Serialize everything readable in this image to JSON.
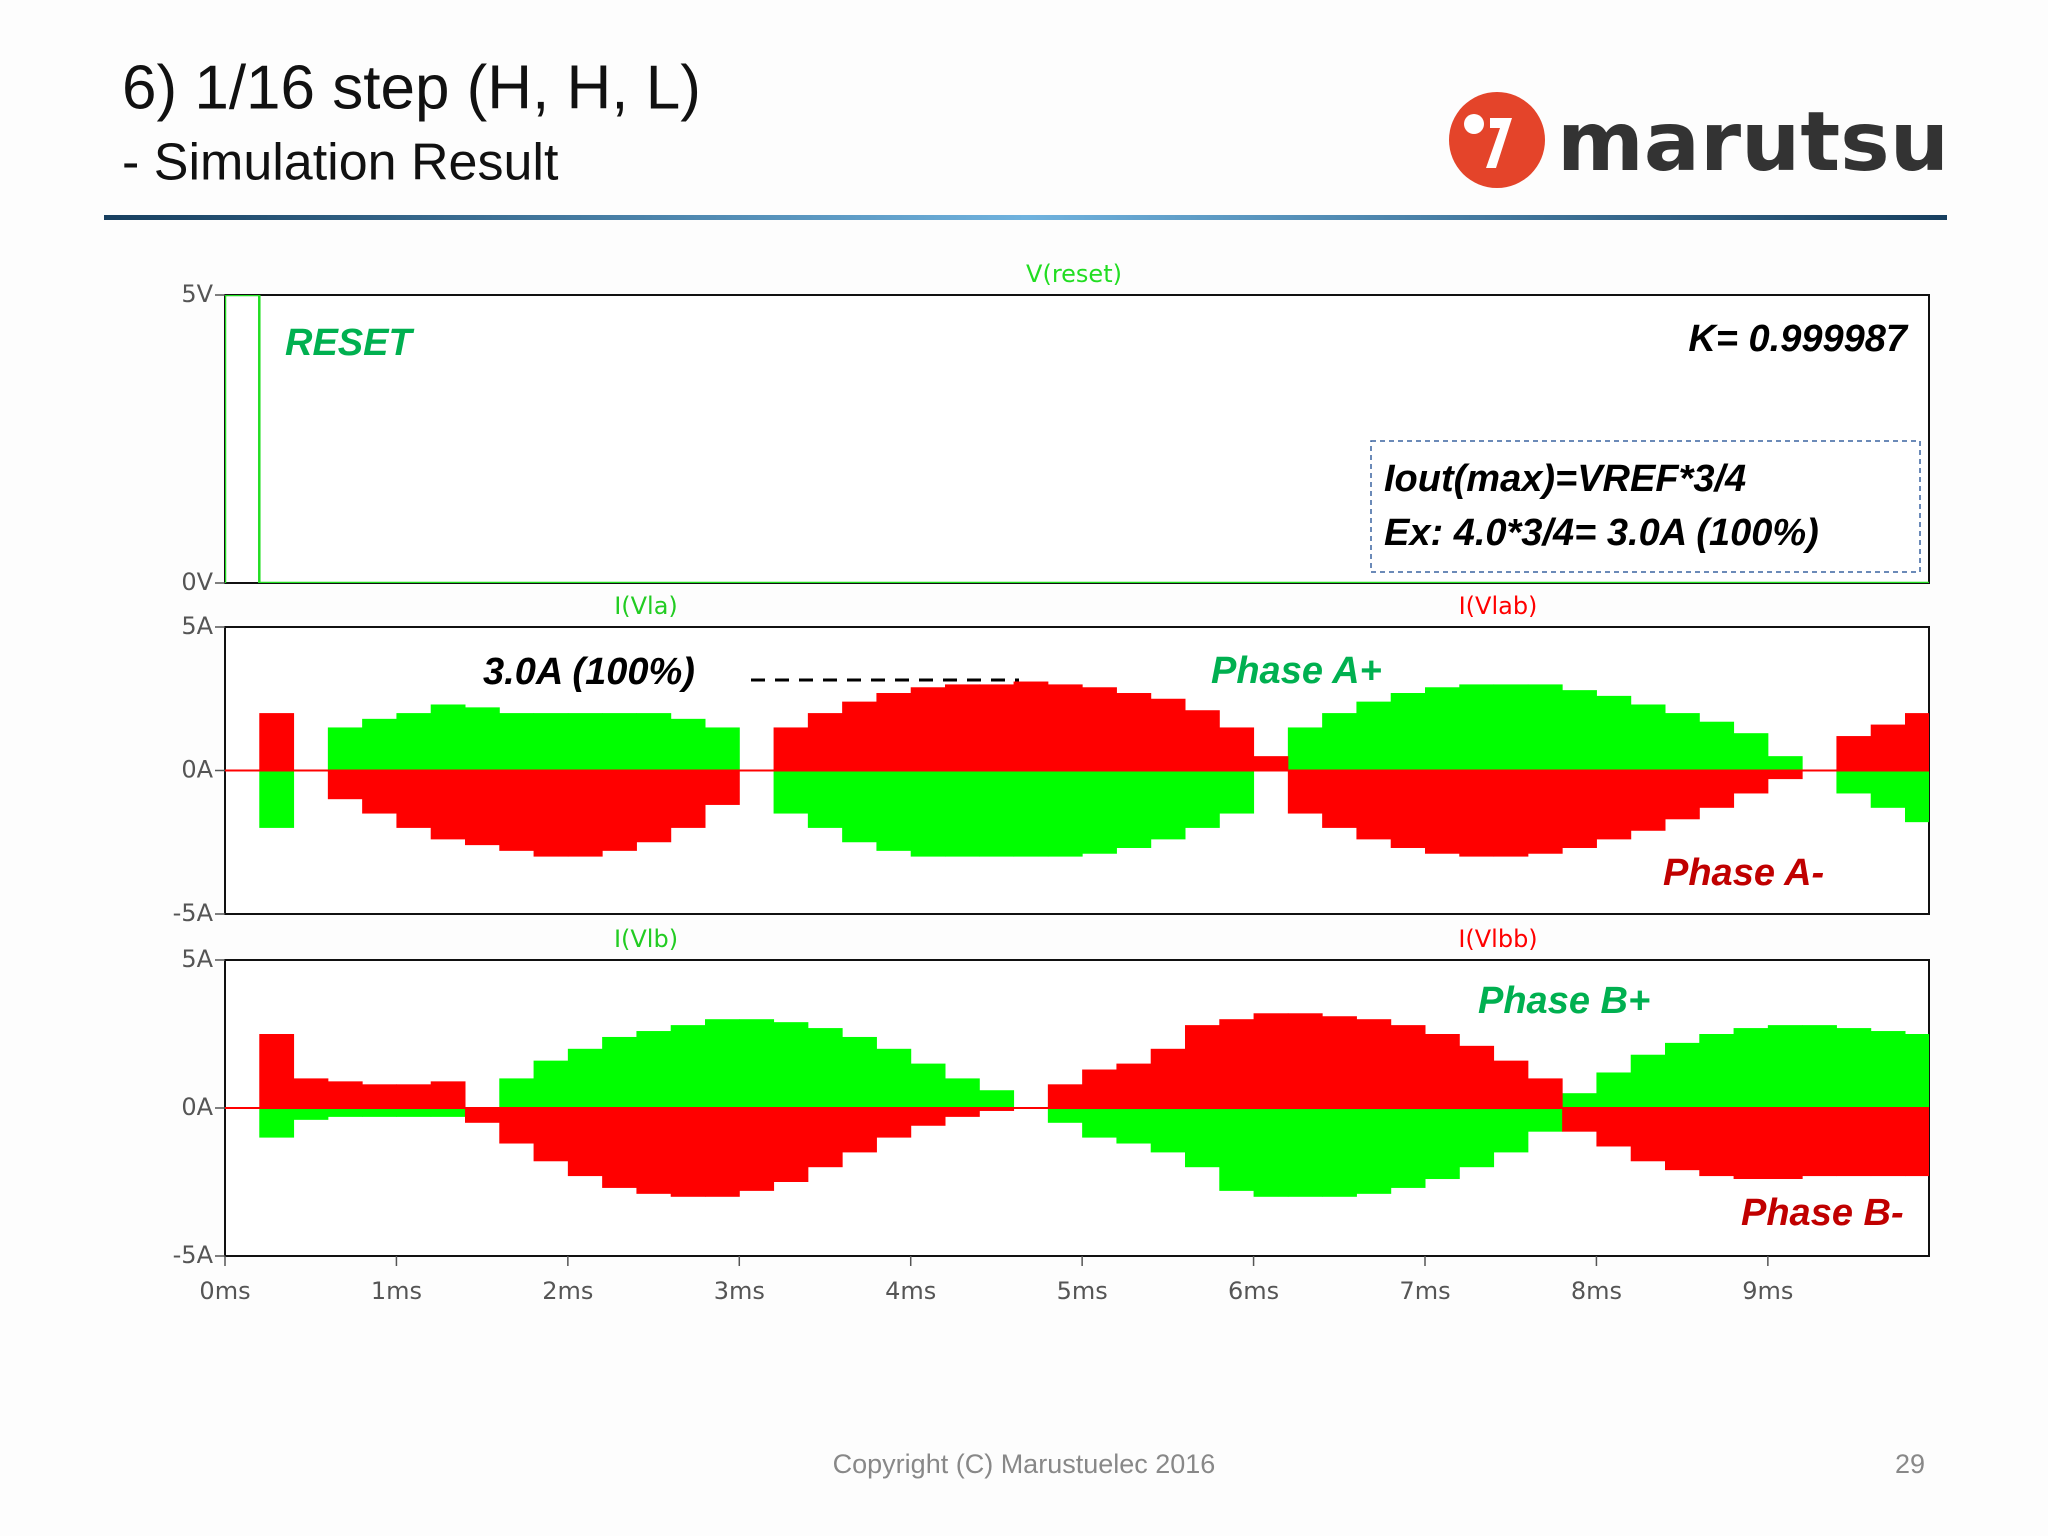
{
  "title": "6) 1/16 step (H, H, L)",
  "subtitle": "- Simulation Result",
  "logo": "marutsu",
  "footer": "Copyright (C) Marustuelec 2016",
  "page_number": "29",
  "chart_data": [
    {
      "type": "line",
      "x": [
        0,
        0,
        0.2,
        0.2,
        9.94
      ],
      "series": [
        {
          "name": "V(reset)",
          "color": "#22dd22",
          "values": [
            0,
            5,
            5,
            0,
            0
          ]
        }
      ],
      "xlim": [
        0,
        9.94
      ],
      "ylim": [
        0,
        5
      ],
      "yticks": [
        {
          "value": 0,
          "label": "0V"
        },
        {
          "value": 5,
          "label": "5V"
        }
      ],
      "annotations": [
        "RESET",
        "K= 0.999987",
        "Iout(max)=VREF*3/4",
        "Ex: 4.0*3/4= 3.0A (100%)"
      ]
    },
    {
      "type": "area",
      "x": [
        0,
        0.2,
        0.4,
        0.6,
        0.8,
        1.0,
        1.2,
        1.4,
        1.6,
        1.8,
        2.0,
        2.2,
        2.4,
        2.6,
        2.8,
        3.0,
        3.2,
        3.4,
        3.6,
        3.8,
        4.0,
        4.2,
        4.4,
        4.6,
        4.8,
        5.0,
        5.2,
        5.4,
        5.6,
        5.8,
        6.0,
        6.2,
        6.4,
        6.6,
        6.8,
        7.0,
        7.2,
        7.4,
        7.6,
        7.8,
        8.0,
        8.2,
        8.4,
        8.6,
        8.8,
        9.0,
        9.2,
        9.4,
        9.6,
        9.8
      ],
      "series": [
        {
          "name": "I(Vla)",
          "color": "#00ff00",
          "values": [
            0,
            -2,
            0,
            1.5,
            1.8,
            2,
            2.3,
            2.2,
            2,
            2,
            2,
            2,
            2,
            1.8,
            1.5,
            0,
            -1.5,
            -2,
            -2.5,
            -2.8,
            -3,
            -3,
            -3,
            -3,
            -3,
            -2.9,
            -2.7,
            -2.4,
            -2,
            -1.5,
            0,
            1.5,
            2,
            2.4,
            2.7,
            2.9,
            3,
            3,
            3,
            2.8,
            2.6,
            2.3,
            2,
            1.7,
            1.3,
            0.5,
            0,
            -0.8,
            -1.3,
            -1.8
          ]
        },
        {
          "name": "I(Vlab)",
          "color": "#ff0000",
          "values": [
            0,
            2,
            0,
            -1,
            -1.5,
            -2,
            -2.4,
            -2.6,
            -2.8,
            -3,
            -3,
            -2.8,
            -2.5,
            -2,
            -1.2,
            0,
            1.5,
            2,
            2.4,
            2.7,
            2.9,
            3,
            3,
            3.1,
            3,
            2.9,
            2.7,
            2.5,
            2.1,
            1.5,
            0.5,
            -1.5,
            -2,
            -2.4,
            -2.7,
            -2.9,
            -3,
            -3,
            -2.9,
            -2.7,
            -2.4,
            -2.1,
            -1.7,
            -1.3,
            -0.8,
            -0.3,
            0,
            1.2,
            1.6,
            2
          ]
        }
      ],
      "xlim": [
        0,
        9.94
      ],
      "ylim": [
        -5,
        5
      ],
      "yticks": [
        {
          "value": -5,
          "label": "-5A"
        },
        {
          "value": 0,
          "label": "0A"
        },
        {
          "value": 5,
          "label": "5A"
        }
      ],
      "annotations": [
        "3.0A (100%)",
        "Phase A+",
        "Phase A-"
      ]
    },
    {
      "type": "area",
      "x": [
        0,
        0.2,
        0.4,
        0.6,
        0.8,
        1.0,
        1.2,
        1.4,
        1.6,
        1.8,
        2.0,
        2.2,
        2.4,
        2.6,
        2.8,
        3.0,
        3.2,
        3.4,
        3.6,
        3.8,
        4.0,
        4.2,
        4.4,
        4.6,
        4.8,
        5.0,
        5.2,
        5.4,
        5.6,
        5.8,
        6.0,
        6.2,
        6.4,
        6.6,
        6.8,
        7.0,
        7.2,
        7.4,
        7.6,
        7.8,
        8.0,
        8.2,
        8.4,
        8.6,
        8.8,
        9.0,
        9.2,
        9.4,
        9.6,
        9.8
      ],
      "series": [
        {
          "name": "I(Vlb)",
          "color": "#00ff00",
          "values": [
            0,
            -1,
            -0.4,
            -0.3,
            -0.3,
            -0.3,
            -0.3,
            0,
            1,
            1.6,
            2,
            2.4,
            2.6,
            2.8,
            3,
            3,
            2.9,
            2.7,
            2.4,
            2,
            1.5,
            1,
            0.6,
            0,
            -0.5,
            -1,
            -1.2,
            -1.5,
            -2,
            -2.8,
            -3,
            -3,
            -3,
            -2.9,
            -2.7,
            -2.4,
            -2,
            -1.5,
            -0.8,
            0.5,
            1.2,
            1.8,
            2.2,
            2.5,
            2.7,
            2.8,
            2.8,
            2.7,
            2.6,
            2.5
          ]
        },
        {
          "name": "I(Vlbb)",
          "color": "#ff0000",
          "values": [
            0,
            2.5,
            1,
            0.9,
            0.8,
            0.8,
            0.9,
            -0.5,
            -1.2,
            -1.8,
            -2.3,
            -2.7,
            -2.9,
            -3,
            -3,
            -2.8,
            -2.5,
            -2,
            -1.5,
            -1,
            -0.6,
            -0.3,
            -0.1,
            0,
            0.8,
            1.3,
            1.5,
            2,
            2.8,
            3,
            3.2,
            3.2,
            3.1,
            3,
            2.8,
            2.5,
            2.1,
            1.6,
            1,
            -0.8,
            -1.3,
            -1.8,
            -2.1,
            -2.3,
            -2.4,
            -2.4,
            -2.3,
            -2.3,
            -2.3,
            -2.3
          ]
        }
      ],
      "xlim": [
        0,
        9.94
      ],
      "ylim": [
        -5,
        5
      ],
      "yticks": [
        {
          "value": -5,
          "label": "-5A"
        },
        {
          "value": 0,
          "label": "0A"
        },
        {
          "value": 5,
          "label": "5A"
        }
      ],
      "xticks": [
        {
          "value": 0,
          "label": "0ms"
        },
        {
          "value": 1,
          "label": "1ms"
        },
        {
          "value": 2,
          "label": "2ms"
        },
        {
          "value": 3,
          "label": "3ms"
        },
        {
          "value": 4,
          "label": "4ms"
        },
        {
          "value": 5,
          "label": "5ms"
        },
        {
          "value": 6,
          "label": "6ms"
        },
        {
          "value": 7,
          "label": "7ms"
        },
        {
          "value": 8,
          "label": "8ms"
        },
        {
          "value": 9,
          "label": "9ms"
        }
      ],
      "annotations": [
        "Phase B+",
        "Phase B-"
      ]
    }
  ]
}
